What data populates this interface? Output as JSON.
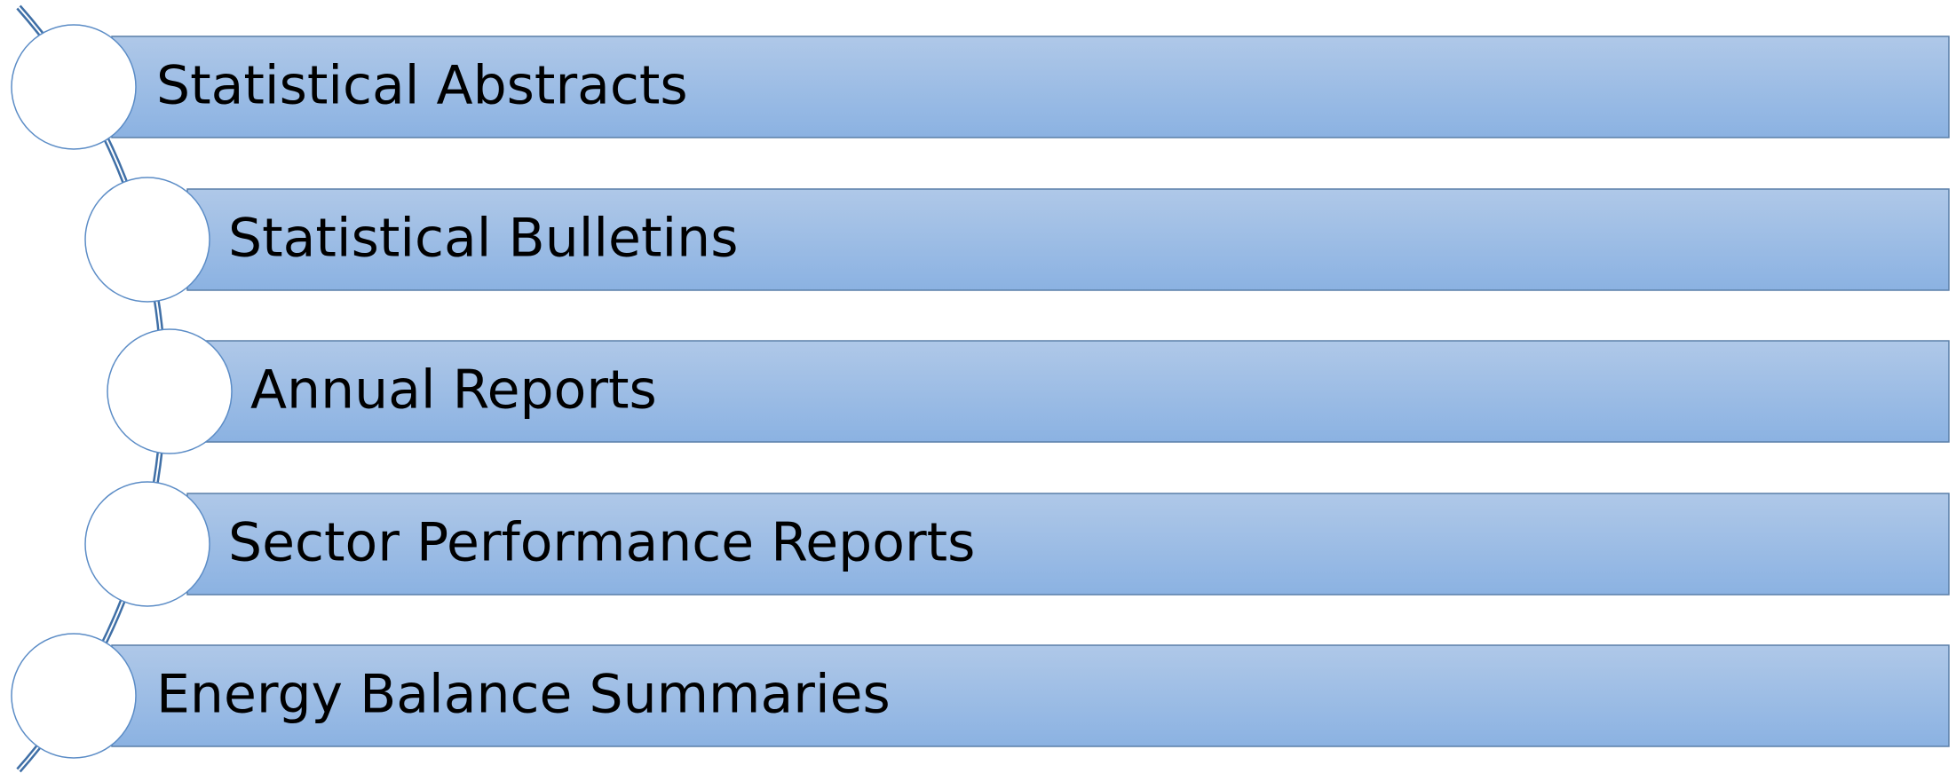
{
  "items": [
    {
      "label": "Statistical Abstracts"
    },
    {
      "label": "Statistical Bulletins"
    },
    {
      "label": "Annual Reports"
    },
    {
      "label": "Sector Performance Reports"
    },
    {
      "label": "Energy Balance Summaries"
    }
  ]
}
